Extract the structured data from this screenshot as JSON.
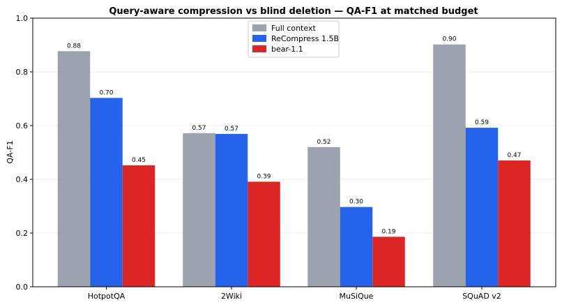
{
  "chart_data": {
    "type": "bar",
    "title": "Query-aware compression vs blind deletion — QA-F1 at matched budget",
    "xlabel": "",
    "ylabel": "QA-F1",
    "ylim": [
      0,
      1.0
    ],
    "yticks": [
      "0.0",
      "0.2",
      "0.4",
      "0.6",
      "0.8",
      "1.0"
    ],
    "grid": "horizontal",
    "legend_position": "top-center",
    "categories": [
      "HotpotQA",
      "2Wiki",
      "MuSiQue",
      "SQuAD v2"
    ],
    "series": [
      {
        "name": "Full context",
        "color": "#9ca3af",
        "values": [
          0.877,
          0.572,
          0.52,
          0.902
        ],
        "labels": [
          "0.88",
          "0.57",
          "0.52",
          "0.90"
        ]
      },
      {
        "name": "ReCompress 1.5B",
        "color": "#2563eb",
        "values": [
          0.703,
          0.569,
          0.297,
          0.592
        ],
        "labels": [
          "0.70",
          "0.57",
          "0.30",
          "0.59"
        ]
      },
      {
        "name": "bear-1.1",
        "color": "#dc2626",
        "values": [
          0.452,
          0.391,
          0.186,
          0.47
        ],
        "labels": [
          "0.45",
          "0.39",
          "0.19",
          "0.47"
        ]
      }
    ]
  }
}
